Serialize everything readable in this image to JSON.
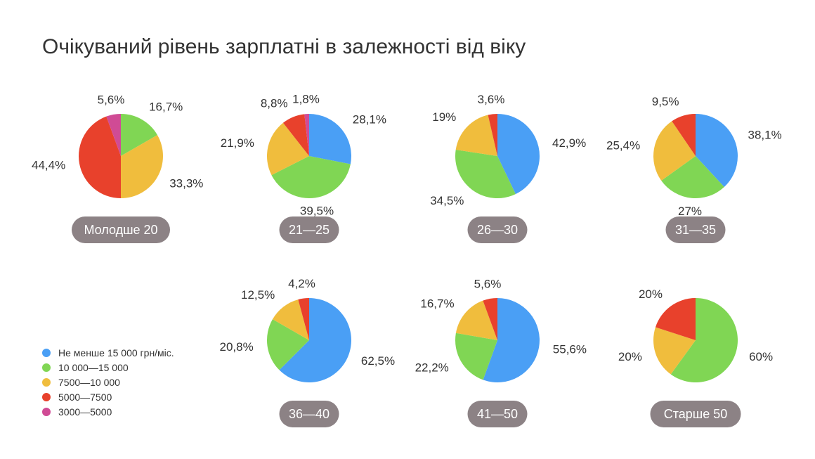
{
  "title": "Очікуваний рівень зарплатні в залежності від віку",
  "legend": [
    {
      "label": "Не менше 15 000 грн/міс.",
      "color": "#4a9ff5"
    },
    {
      "label": "10 000—15 000",
      "color": "#80d654"
    },
    {
      "label": "7500—10 000",
      "color": "#f0bd3d"
    },
    {
      "label": "5000—7500",
      "color": "#e8412c"
    },
    {
      "label": "3000—5000",
      "color": "#d04b95"
    }
  ],
  "chart_data": [
    {
      "type": "pie",
      "category": "Молодше 20",
      "series": [
        {
          "name": "Не менше 15 000 грн/міс.",
          "value": 0,
          "label": ""
        },
        {
          "name": "10 000—15 000",
          "value": 16.7,
          "label": "16,7%"
        },
        {
          "name": "7500—10 000",
          "value": 33.3,
          "label": "33,3%"
        },
        {
          "name": "5000—7500",
          "value": 44.4,
          "label": "44,4%"
        },
        {
          "name": "3000—5000",
          "value": 5.6,
          "label": "5,6%"
        }
      ]
    },
    {
      "type": "pie",
      "category": "21—25",
      "series": [
        {
          "name": "Не менше 15 000 грн/міс.",
          "value": 28.1,
          "label": "28,1%"
        },
        {
          "name": "10 000—15 000",
          "value": 39.5,
          "label": "39,5%"
        },
        {
          "name": "7500—10 000",
          "value": 21.9,
          "label": "21,9%"
        },
        {
          "name": "5000—7500",
          "value": 8.8,
          "label": "8,8%"
        },
        {
          "name": "3000—5000",
          "value": 1.8,
          "label": "1,8%"
        }
      ]
    },
    {
      "type": "pie",
      "category": "26—30",
      "series": [
        {
          "name": "Не менше 15 000 грн/міс.",
          "value": 42.9,
          "label": "42,9%"
        },
        {
          "name": "10 000—15 000",
          "value": 34.5,
          "label": "34,5%"
        },
        {
          "name": "7500—10 000",
          "value": 19,
          "label": "19%"
        },
        {
          "name": "5000—7500",
          "value": 3.6,
          "label": "3,6%"
        },
        {
          "name": "3000—5000",
          "value": 0,
          "label": ""
        }
      ]
    },
    {
      "type": "pie",
      "category": "31—35",
      "series": [
        {
          "name": "Не менше 15 000 грн/міс.",
          "value": 38.1,
          "label": "38,1%"
        },
        {
          "name": "10 000—15 000",
          "value": 27,
          "label": "27%"
        },
        {
          "name": "7500—10 000",
          "value": 25.4,
          "label": "25,4%"
        },
        {
          "name": "5000—7500",
          "value": 9.5,
          "label": "9,5%"
        },
        {
          "name": "3000—5000",
          "value": 0,
          "label": ""
        }
      ]
    },
    {
      "type": "pie",
      "category": "36—40",
      "series": [
        {
          "name": "Не менше 15 000 грн/міс.",
          "value": 62.5,
          "label": "62,5%"
        },
        {
          "name": "10 000—15 000",
          "value": 20.8,
          "label": "20,8%"
        },
        {
          "name": "7500—10 000",
          "value": 12.5,
          "label": "12,5%"
        },
        {
          "name": "5000—7500",
          "value": 4.2,
          "label": "4,2%"
        },
        {
          "name": "3000—5000",
          "value": 0,
          "label": ""
        }
      ]
    },
    {
      "type": "pie",
      "category": "41—50",
      "series": [
        {
          "name": "Не менше 15 000 грн/міс.",
          "value": 55.6,
          "label": "55,6%"
        },
        {
          "name": "10 000—15 000",
          "value": 22.2,
          "label": "22,2%"
        },
        {
          "name": "7500—10 000",
          "value": 16.7,
          "label": "16,7%"
        },
        {
          "name": "5000—7500",
          "value": 5.6,
          "label": "5,6%"
        },
        {
          "name": "3000—5000",
          "value": 0,
          "label": ""
        }
      ]
    },
    {
      "type": "pie",
      "category": "Старше 50",
      "series": [
        {
          "name": "Не менше 15 000 грн/міс.",
          "value": 0,
          "label": ""
        },
        {
          "name": "10 000—15 000",
          "value": 60,
          "label": "60%"
        },
        {
          "name": "7500—10 000",
          "value": 20,
          "label": "20%"
        },
        {
          "name": "5000—7500",
          "value": 20,
          "label": "20%"
        },
        {
          "name": "3000—5000",
          "value": 0,
          "label": ""
        }
      ]
    }
  ]
}
